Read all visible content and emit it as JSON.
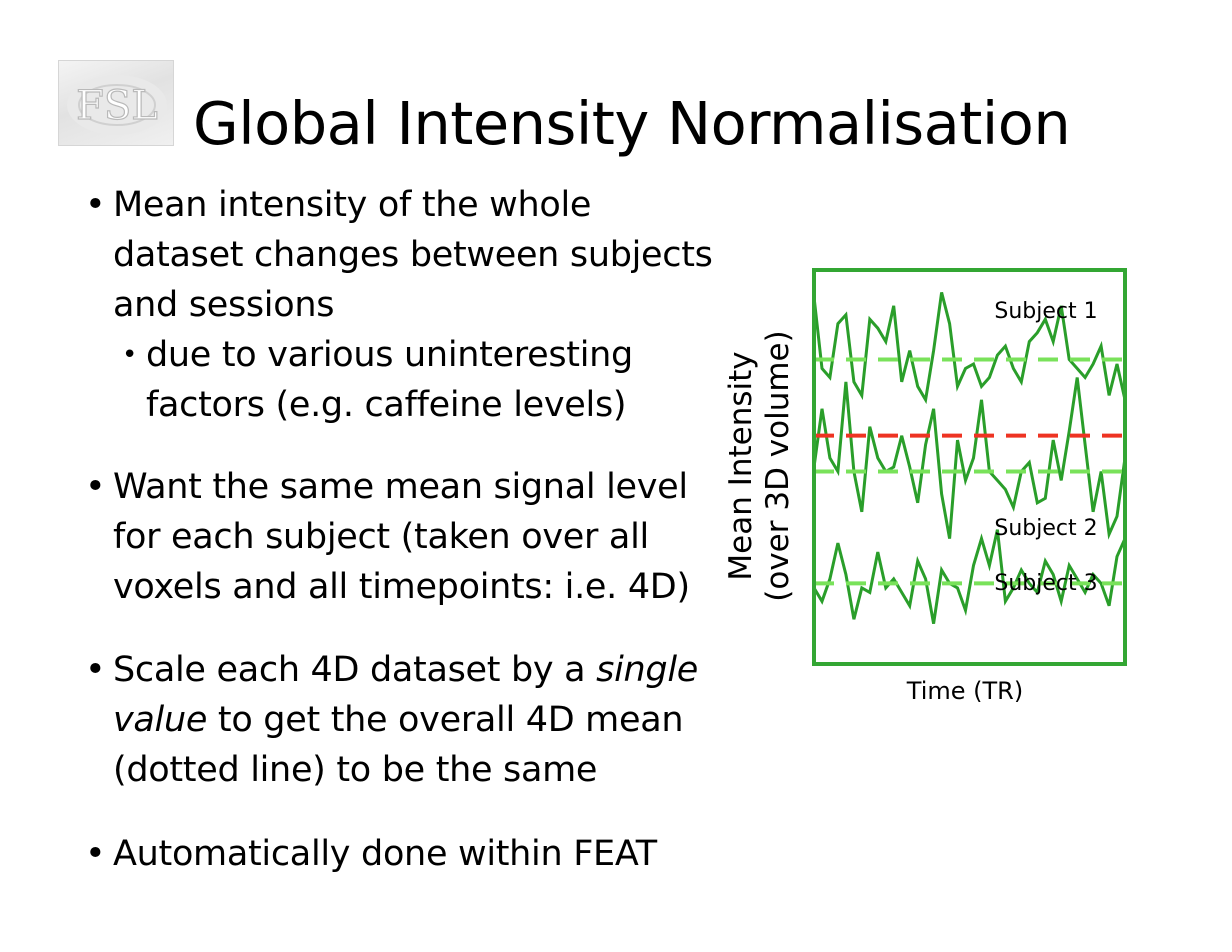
{
  "logo": {
    "text": "FSL"
  },
  "title": "Global Intensity Normalisation",
  "bullets": [
    {
      "lines": [
        "Mean intensity of the whole",
        "dataset changes between subjects",
        "and sessions"
      ]
    },
    {
      "lines": [
        "Want the same mean signal level",
        "for each subject (taken over all",
        "voxels and all timepoints: i.e. 4D)"
      ]
    },
    {
      "lines_rich": [
        [
          {
            "t": "Scale each 4D dataset by a "
          },
          {
            "t": "single",
            "i": true
          }
        ],
        [
          {
            "t": "value",
            "i": true
          },
          {
            "t": " to get the overall 4D mean"
          }
        ],
        [
          {
            "t": "(dotted line) to be the same"
          }
        ]
      ]
    },
    {
      "lines": [
        "Automatically done within FEAT"
      ]
    }
  ],
  "sub_bullet": {
    "lines": [
      "due to various uninteresting",
      "factors (e.g. caffeine levels)"
    ]
  },
  "chart_data": {
    "type": "line",
    "xlabel": "Time (TR)",
    "ylabel_lines": [
      "Mean Intensity",
      "(over 3D volume)"
    ],
    "x": [
      0,
      1,
      2,
      3,
      4,
      5,
      6,
      7,
      8,
      9,
      10,
      11,
      12,
      13,
      14,
      15,
      16,
      17,
      18,
      19,
      20,
      21,
      22,
      23,
      24,
      25,
      26,
      27,
      28,
      29,
      30,
      31,
      32,
      33,
      34,
      35,
      36,
      37,
      38,
      39
    ],
    "series": [
      {
        "name": "Subject 1",
        "values": [
          8.4,
          6.8,
          6.6,
          7.8,
          8.0,
          6.5,
          6.2,
          7.9,
          7.7,
          7.4,
          8.2,
          6.5,
          7.2,
          6.4,
          6.1,
          7.2,
          8.5,
          7.8,
          6.4,
          6.8,
          6.9,
          6.4,
          6.6,
          7.1,
          7.3,
          6.8,
          6.5,
          7.4,
          7.6,
          7.9,
          7.4,
          8.2,
          7.0,
          6.8,
          6.6,
          6.9,
          7.3,
          6.2,
          6.9,
          6.1
        ],
        "mean": 7.0
      },
      {
        "name": "Subject 2",
        "values": [
          4.6,
          5.9,
          4.8,
          4.5,
          6.5,
          4.5,
          3.6,
          5.5,
          4.8,
          4.5,
          4.6,
          5.3,
          4.6,
          3.8,
          5.1,
          5.9,
          4.0,
          3.0,
          5.2,
          4.3,
          4.8,
          6.1,
          4.5,
          4.3,
          4.1,
          3.7,
          4.5,
          4.7,
          3.8,
          3.9,
          5.2,
          4.3,
          5.4,
          6.6,
          5.1,
          3.6,
          4.5,
          3.1,
          3.5,
          4.8
        ],
        "mean": 4.5
      },
      {
        "name": "Subject 3",
        "values": [
          1.9,
          1.6,
          2.1,
          2.9,
          2.2,
          1.2,
          1.9,
          1.8,
          2.7,
          1.9,
          2.1,
          1.8,
          1.5,
          2.5,
          2.1,
          1.1,
          2.3,
          2.0,
          1.9,
          1.4,
          2.4,
          3.0,
          2.4,
          3.2,
          1.6,
          1.9,
          2.3,
          2.0,
          1.8,
          2.5,
          2.2,
          1.6,
          2.4,
          2.1,
          1.8,
          2.2,
          2.0,
          1.5,
          2.6,
          3.0
        ],
        "mean": 2.0
      }
    ],
    "overall_mean": 5.3,
    "ylim": [
      0.2,
      9.0
    ],
    "grid": false,
    "colors": {
      "series_line": "#2a9e2a",
      "subject_mean": "#79e25a",
      "overall_mean": "#ee3322",
      "frame": "#33a633"
    }
  }
}
